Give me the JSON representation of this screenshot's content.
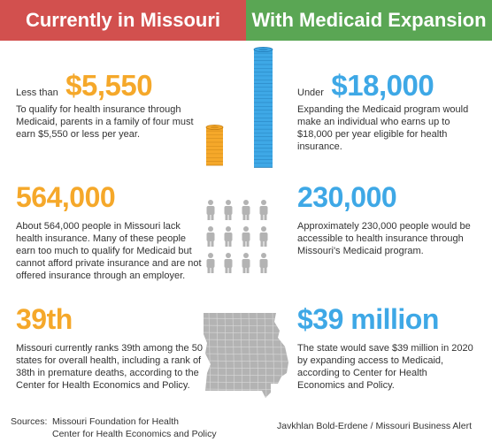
{
  "header": {
    "left_title": "Currently in Missouri",
    "right_title": "With Medicaid Expansion",
    "left_color": "#d2504e",
    "right_color": "#5aa654"
  },
  "colors": {
    "orange": "#f5a82a",
    "blue": "#3ea8e6",
    "grey": "#b3b3b3"
  },
  "left": {
    "income": {
      "prefix": "Less than",
      "value": "$5,550",
      "text": "To qualify for health insurance through Medicaid, parents in a family of four must earn $5,550 or less per year."
    },
    "uninsured": {
      "value": "564,000",
      "text": "About 564,000 people in Missouri lack health insurance. Many of these people earn too much to qualify for Medicaid but cannot afford private insurance and are not offered insurance through an employer."
    },
    "rank": {
      "value": "39th",
      "text": "Missouri currently ranks 39th among the 50 states for overall health, including a rank of 38th in premature deaths, according to the Center for Health Economics and Policy."
    }
  },
  "right": {
    "income": {
      "prefix": "Under",
      "value": "$18,000",
      "text": "Expanding the Medicaid program would make an individual who earns up to $18,000 per year eligible for health insurance."
    },
    "covered": {
      "value": "230,000",
      "text": "Approximately 230,000 people would be accessible to health insurance through Missouri's Medicaid program."
    },
    "savings": {
      "value": "$39 million",
      "text": "The state would save $39 million in 2020 by expanding access to Medicaid, according to Center for Health Economics and Policy."
    }
  },
  "icons": {
    "small_coin_stack": "coin-stack-icon",
    "large_coin_stack": "coin-stack-icon",
    "people": "person-icon",
    "state_map": "missouri-map-icon"
  },
  "footer": {
    "sources_label": "Sources:",
    "source_1": "Missouri Foundation for Health",
    "source_2": "Center for Health Economics and Policy",
    "credit": "Javkhlan Bold-Erdene / Missouri Business Alert"
  }
}
